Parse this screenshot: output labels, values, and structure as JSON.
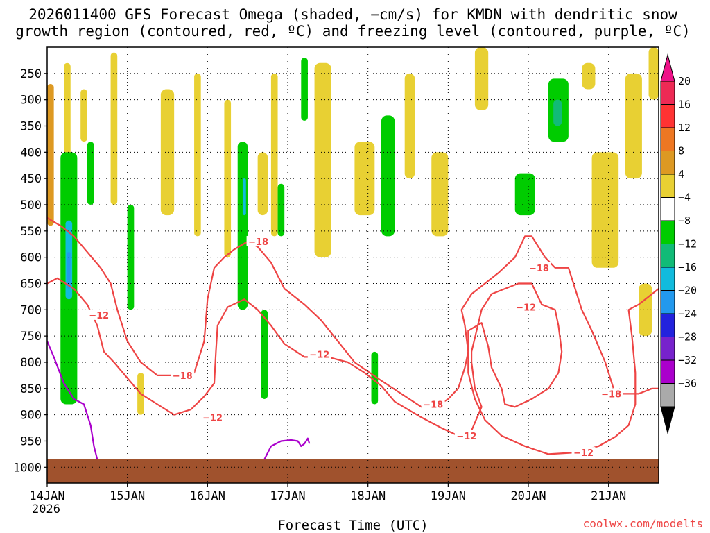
{
  "chart_data": {
    "type": "heatmap",
    "title_line1": "2026011400 GFS Forecast Omega (shaded, −cm/s) for KMDN with dendritic snow",
    "title_line2": "growth region (contoured, red, ºC) and freezing level (contoured, purple, ºC)",
    "xlabel": "Forecast Time (UTC)",
    "ylabel": "",
    "credit": "coolwx.com/modelts",
    "x_ticks": [
      {
        "label": "14JAN",
        "sub": "2026",
        "hours": 0
      },
      {
        "label": "15JAN",
        "hours": 24
      },
      {
        "label": "16JAN",
        "hours": 48
      },
      {
        "label": "17JAN",
        "hours": 72
      },
      {
        "label": "18JAN",
        "hours": 96
      },
      {
        "label": "19JAN",
        "hours": 120
      },
      {
        "label": "20JAN",
        "hours": 144
      },
      {
        "label": "21JAN",
        "hours": 168
      }
    ],
    "x_range_hours": [
      0,
      183
    ],
    "y_ticks": [
      250,
      300,
      350,
      400,
      450,
      500,
      550,
      600,
      650,
      700,
      750,
      800,
      850,
      900,
      950,
      1000
    ],
    "y_range_hpa": [
      200,
      1030
    ],
    "grid": "dotted",
    "colorbar": {
      "labels": [
        "20",
        "16",
        "12",
        "8",
        "4",
        "−4",
        "−8",
        "−12",
        "−16",
        "−20",
        "−24",
        "−28",
        "−32",
        "−36"
      ],
      "colors": [
        "#ee2a55",
        "#ff3333",
        "#ee7722",
        "#dd9922",
        "#e8d033",
        "#ffffff",
        "#00cc00",
        "#11bb77",
        "#11bbdd",
        "#2299ee",
        "#2222dd",
        "#7722cc",
        "#aa00cc",
        "#aaaaaa"
      ],
      "top_arrow_color": "#ee1188",
      "bottom_arrow_color": "#000000"
    },
    "omega_regions": [
      {
        "hours": [
          0,
          2
        ],
        "p": [
          270,
          540
        ],
        "value": 8
      },
      {
        "hours": [
          5,
          7
        ],
        "p": [
          230,
          420
        ],
        "value": 4
      },
      {
        "hours": [
          10,
          12
        ],
        "p": [
          280,
          380
        ],
        "value": 6
      },
      {
        "hours": [
          4,
          9
        ],
        "p": [
          400,
          880
        ],
        "value": -8
      },
      {
        "hours": [
          5.5,
          7.5
        ],
        "p": [
          530,
          680
        ],
        "value": -16
      },
      {
        "hours": [
          6,
          7
        ],
        "p": [
          590,
          660
        ],
        "value": -22
      },
      {
        "hours": [
          12,
          14
        ],
        "p": [
          380,
          500
        ],
        "value": -8
      },
      {
        "hours": [
          19,
          21
        ],
        "p": [
          210,
          500
        ],
        "value": 4
      },
      {
        "hours": [
          24,
          26
        ],
        "p": [
          500,
          700
        ],
        "value": -8
      },
      {
        "hours": [
          27,
          29
        ],
        "p": [
          820,
          900
        ],
        "value": 4
      },
      {
        "hours": [
          34,
          38
        ],
        "p": [
          280,
          520
        ],
        "value": 4
      },
      {
        "hours": [
          44,
          46
        ],
        "p": [
          250,
          560
        ],
        "value": 4
      },
      {
        "hours": [
          53,
          55
        ],
        "p": [
          300,
          600
        ],
        "value": 4
      },
      {
        "hours": [
          57,
          60
        ],
        "p": [
          380,
          700
        ],
        "value": -8
      },
      {
        "hours": [
          58.5,
          59.5
        ],
        "p": [
          450,
          520
        ],
        "value": -16
      },
      {
        "hours": [
          63,
          66
        ],
        "p": [
          400,
          520
        ],
        "value": 4
      },
      {
        "hours": [
          64,
          66
        ],
        "p": [
          700,
          870
        ],
        "value": -8
      },
      {
        "hours": [
          67,
          69
        ],
        "p": [
          250,
          560
        ],
        "value": 4
      },
      {
        "hours": [
          69,
          71
        ],
        "p": [
          460,
          560
        ],
        "value": -8
      },
      {
        "hours": [
          76,
          78
        ],
        "p": [
          220,
          340
        ],
        "value": -8
      },
      {
        "hours": [
          80,
          85
        ],
        "p": [
          230,
          600
        ],
        "value": 4
      },
      {
        "hours": [
          92,
          98
        ],
        "p": [
          380,
          520
        ],
        "value": 4
      },
      {
        "hours": [
          97,
          99
        ],
        "p": [
          780,
          880
        ],
        "value": -8
      },
      {
        "hours": [
          100,
          104
        ],
        "p": [
          330,
          560
        ],
        "value": -8
      },
      {
        "hours": [
          107,
          110
        ],
        "p": [
          250,
          450
        ],
        "value": 4
      },
      {
        "hours": [
          115,
          120
        ],
        "p": [
          400,
          560
        ],
        "value": 4
      },
      {
        "hours": [
          128,
          132
        ],
        "p": [
          200,
          320
        ],
        "value": 4
      },
      {
        "hours": [
          140,
          146
        ],
        "p": [
          440,
          520
        ],
        "value": -8
      },
      {
        "hours": [
          150,
          156
        ],
        "p": [
          260,
          380
        ],
        "value": -8
      },
      {
        "hours": [
          151.5,
          154
        ],
        "p": [
          300,
          350
        ],
        "value": -12
      },
      {
        "hours": [
          160,
          164
        ],
        "p": [
          230,
          280
        ],
        "value": 4
      },
      {
        "hours": [
          163,
          171
        ],
        "p": [
          400,
          620
        ],
        "value": 4
      },
      {
        "hours": [
          173,
          178
        ],
        "p": [
          250,
          450
        ],
        "value": 4
      },
      {
        "hours": [
          177,
          181
        ],
        "p": [
          650,
          750
        ],
        "value": 4
      },
      {
        "hours": [
          180,
          183
        ],
        "p": [
          200,
          300
        ],
        "value": 4
      }
    ],
    "series": [
      {
        "name": "-18",
        "color": "#ee4444",
        "points": [
          [
            0,
            525
          ],
          [
            4,
            540
          ],
          [
            8,
            560
          ],
          [
            12,
            590
          ],
          [
            16,
            620
          ],
          [
            19,
            650
          ],
          [
            21,
            700
          ],
          [
            24,
            760
          ],
          [
            28,
            800
          ],
          [
            33,
            825
          ],
          [
            38,
            825
          ],
          [
            44,
            820
          ],
          [
            47,
            760
          ],
          [
            48,
            680
          ],
          [
            50,
            620
          ],
          [
            53,
            600
          ],
          [
            56,
            585
          ],
          [
            60,
            570
          ],
          [
            63,
            580
          ],
          [
            67,
            610
          ],
          [
            71,
            660
          ],
          [
            77,
            690
          ],
          [
            82,
            720
          ],
          [
            87,
            760
          ],
          [
            92,
            800
          ],
          [
            100,
            835
          ],
          [
            106,
            860
          ],
          [
            112,
            885
          ],
          [
            118,
            878
          ],
          [
            120,
            870
          ],
          [
            123,
            850
          ],
          [
            125,
            810
          ],
          [
            126,
            780
          ],
          [
            125,
            730
          ],
          [
            124,
            700
          ],
          [
            127,
            670
          ],
          [
            131,
            650
          ],
          [
            135,
            630
          ],
          [
            140,
            600
          ],
          [
            143,
            560
          ],
          [
            145,
            560
          ],
          [
            149,
            600
          ],
          [
            152,
            620
          ],
          [
            156,
            620
          ],
          [
            158,
            660
          ],
          [
            160,
            700
          ],
          [
            163,
            740
          ],
          [
            167,
            800
          ],
          [
            170,
            860
          ],
          [
            174,
            860
          ],
          [
            177,
            860
          ],
          [
            181,
            850
          ],
          [
            183,
            850
          ]
        ]
      },
      {
        "name": "-12",
        "color": "#ee4444",
        "points": [
          [
            0,
            650
          ],
          [
            3,
            640
          ],
          [
            8,
            660
          ],
          [
            12,
            690
          ],
          [
            15,
            730
          ],
          [
            17,
            780
          ],
          [
            20,
            800
          ],
          [
            24,
            830
          ],
          [
            28,
            860
          ],
          [
            33,
            880
          ],
          [
            38,
            900
          ],
          [
            43,
            890
          ],
          [
            47,
            865
          ],
          [
            50,
            840
          ],
          [
            50.5,
            780
          ],
          [
            51,
            730
          ],
          [
            54,
            695
          ],
          [
            59,
            680
          ],
          [
            63,
            700
          ],
          [
            67,
            730
          ],
          [
            71,
            765
          ],
          [
            77,
            790
          ],
          [
            84,
            790
          ],
          [
            90,
            800
          ],
          [
            95,
            820
          ],
          [
            100,
            845
          ],
          [
            104,
            875
          ],
          [
            112,
            905
          ],
          [
            118,
            925
          ],
          [
            123,
            940
          ],
          [
            127,
            930
          ],
          [
            130,
            885
          ],
          [
            128,
            850
          ],
          [
            127,
            800
          ],
          [
            127,
            780
          ],
          [
            130,
            700
          ],
          [
            133,
            670
          ],
          [
            137,
            660
          ],
          [
            141,
            650
          ],
          [
            145,
            650
          ],
          [
            148,
            690
          ],
          [
            152,
            700
          ],
          [
            153,
            730
          ],
          [
            154,
            780
          ],
          [
            153,
            820
          ],
          [
            150,
            850
          ],
          [
            145,
            870
          ],
          [
            140,
            885
          ],
          [
            137,
            880
          ],
          [
            136,
            850
          ],
          [
            133,
            810
          ],
          [
            132,
            770
          ],
          [
            130,
            725
          ],
          [
            126,
            740
          ],
          [
            126,
            820
          ],
          [
            128,
            870
          ],
          [
            131,
            910
          ],
          [
            136,
            940
          ],
          [
            143,
            960
          ],
          [
            150,
            975
          ],
          [
            158,
            972
          ],
          [
            165,
            960
          ],
          [
            170,
            942
          ],
          [
            174,
            920
          ],
          [
            176,
            880
          ],
          [
            176,
            820
          ],
          [
            175,
            750
          ],
          [
            174,
            700
          ],
          [
            177,
            690
          ],
          [
            181,
            670
          ],
          [
            183,
            660
          ]
        ]
      },
      {
        "name": "0",
        "color": "#aa00cc",
        "points": [
          [
            0,
            760
          ],
          [
            2,
            790
          ],
          [
            5,
            840
          ],
          [
            8,
            870
          ],
          [
            11,
            880
          ],
          [
            13,
            920
          ],
          [
            14,
            960
          ],
          [
            15,
            985
          ]
        ]
      },
      {
        "name": "0",
        "color": "#aa00cc",
        "points": [
          [
            65,
            985
          ],
          [
            67,
            960
          ],
          [
            70,
            950
          ],
          [
            73,
            948
          ],
          [
            75,
            950
          ],
          [
            76,
            960
          ],
          [
            77,
            955
          ],
          [
            78,
            945
          ],
          [
            78.5,
            955
          ]
        ]
      }
    ],
    "contour_labels": [
      {
        "text": "−12",
        "hours": 15.5,
        "p": 710
      },
      {
        "text": "−18",
        "hours": 40.5,
        "p": 825
      },
      {
        "text": "−12",
        "hours": 49.5,
        "p": 905
      },
      {
        "text": "−18",
        "hours": 63.2,
        "p": 570
      },
      {
        "text": "−12",
        "hours": 81.5,
        "p": 785
      },
      {
        "text": "−18",
        "hours": 115.5,
        "p": 880
      },
      {
        "text": "−12",
        "hours": 125.5,
        "p": 940
      },
      {
        "text": "−18",
        "hours": 147.2,
        "p": 620
      },
      {
        "text": "−12",
        "hours": 143.3,
        "p": 695
      },
      {
        "text": "−12",
        "hours": 160.5,
        "p": 972
      },
      {
        "text": "−18",
        "hours": 168.8,
        "p": 860
      }
    ],
    "ground_pressure": 985
  }
}
